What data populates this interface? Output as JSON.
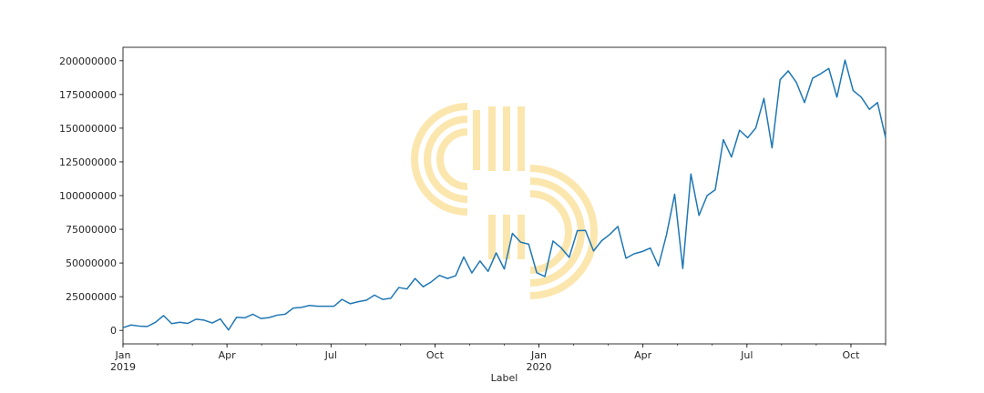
{
  "chart_data": {
    "type": "line",
    "title": "",
    "xlabel": "Label",
    "ylabel": "",
    "x_start": "2019-01",
    "x_end": "2020-11",
    "ylim": [
      -10000000,
      210000000
    ],
    "y_ticks": [
      0,
      25000000,
      50000000,
      75000000,
      100000000,
      125000000,
      150000000,
      175000000,
      200000000
    ],
    "y_tick_labels": [
      "0",
      "25000000",
      "50000000",
      "75000000",
      "100000000",
      "125000000",
      "150000000",
      "175000000",
      "200000000"
    ],
    "x_ticks": [
      {
        "month": "2019-01",
        "label": "Jan",
        "year": "2019"
      },
      {
        "month": "2019-04",
        "label": "Apr",
        "year": ""
      },
      {
        "month": "2019-07",
        "label": "Jul",
        "year": ""
      },
      {
        "month": "2019-10",
        "label": "Oct",
        "year": ""
      },
      {
        "month": "2020-01",
        "label": "Jan",
        "year": "2020"
      },
      {
        "month": "2020-04",
        "label": "Apr",
        "year": ""
      },
      {
        "month": "2020-07",
        "label": "Jul",
        "year": ""
      },
      {
        "month": "2020-10",
        "label": "Oct",
        "year": ""
      }
    ],
    "grid": false,
    "series": [
      {
        "color": "#1f77b4",
        "values": [
          2000000,
          4000000,
          3200000,
          2900000,
          6000000,
          11000000,
          5000000,
          6000000,
          5200000,
          8300000,
          7600000,
          5500000,
          8500000,
          300000,
          9700000,
          9300000,
          12000000,
          8800000,
          9500000,
          11300000,
          12000000,
          16600000,
          17100000,
          18500000,
          17900000,
          17900000,
          17900000,
          23000000,
          19800000,
          21300000,
          22400000,
          26200000,
          23000000,
          23800000,
          31800000,
          30700000,
          38500000,
          32400000,
          36000000,
          40800000,
          38500000,
          40500000,
          54500000,
          42600000,
          51500000,
          43800000,
          57500000,
          45500000,
          72000000,
          65500000,
          64000000,
          42800000,
          40000000,
          66300000,
          61300000,
          54200000,
          74000000,
          74200000,
          58900000,
          66500000,
          71200000,
          77100000,
          53500000,
          56800000,
          58500000,
          61100000,
          47700000,
          71100000,
          101000000,
          45900000,
          116000000,
          85300000,
          100000000,
          104300000,
          141500000,
          128600000,
          148500000,
          142900000,
          150200000,
          172100000,
          135400000,
          186000000,
          192500000,
          184000000,
          169000000,
          187000000,
          190400000,
          194300000,
          173000000,
          200500000,
          177900000,
          173000000,
          164000000,
          169000000,
          143000000
        ]
      }
    ],
    "watermark_color": "#fbe6ae"
  }
}
